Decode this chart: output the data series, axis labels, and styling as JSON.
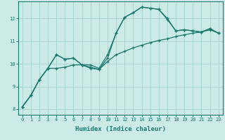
{
  "xlabel": "Humidex (Indice chaleur)",
  "x": [
    0,
    1,
    2,
    3,
    4,
    5,
    6,
    7,
    8,
    9,
    10,
    11,
    12,
    13,
    14,
    15,
    16,
    17,
    18,
    19,
    20,
    21,
    22,
    23
  ],
  "line1": [
    8.1,
    8.6,
    9.3,
    9.8,
    10.4,
    10.2,
    10.25,
    9.95,
    9.95,
    9.8,
    10.4,
    11.35,
    12.05,
    12.25,
    12.5,
    12.45,
    12.4,
    12.0,
    11.45,
    11.5,
    11.45,
    11.4,
    11.55,
    11.35
  ],
  "line2": [
    8.1,
    8.6,
    9.3,
    9.8,
    10.4,
    10.2,
    10.25,
    9.95,
    9.8,
    9.75,
    10.25,
    11.35,
    12.05,
    12.25,
    12.5,
    12.45,
    12.4,
    11.95,
    11.45,
    11.5,
    11.45,
    11.4,
    11.55,
    11.35
  ],
  "line3": [
    8.1,
    8.6,
    9.3,
    9.8,
    9.8,
    9.85,
    9.95,
    9.95,
    9.85,
    9.75,
    10.1,
    10.4,
    10.55,
    10.7,
    10.82,
    10.93,
    11.03,
    11.1,
    11.2,
    11.28,
    11.35,
    11.4,
    11.5,
    11.35
  ],
  "line_color": "#1a7a6e",
  "bg_color": "#cceae6",
  "grid_color": "#a8d5d0",
  "ylim": [
    7.75,
    12.75
  ],
  "xlim": [
    -0.5,
    23.5
  ],
  "yticks": [
    8,
    9,
    10,
    11,
    12
  ],
  "xticks": [
    0,
    1,
    2,
    3,
    4,
    5,
    6,
    7,
    8,
    9,
    10,
    11,
    12,
    13,
    14,
    15,
    16,
    17,
    18,
    19,
    20,
    21,
    22,
    23
  ]
}
